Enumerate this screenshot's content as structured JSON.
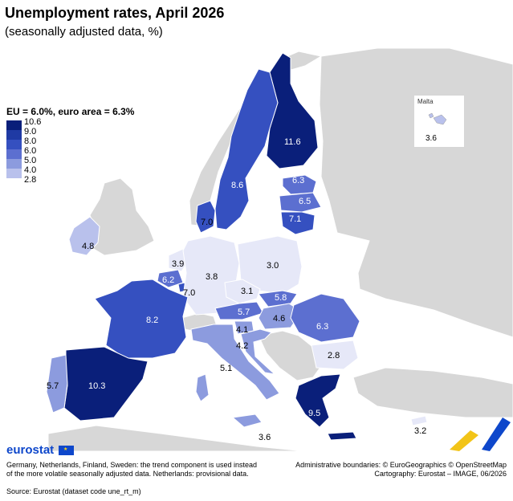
{
  "title": "Unemployment rates, April 2026",
  "subtitle": "(seasonally adjusted data, %)",
  "legend": {
    "summary": "EU = 6.0%, euro area = 6.3%",
    "breaks": [
      "10.6",
      "9.0",
      "8.0",
      "6.0",
      "5.0",
      "4.0",
      "2.8"
    ],
    "colors": [
      "#0a1f7a",
      "#1f3aa4",
      "#3550c0",
      "#5c6fd0",
      "#8c9bde",
      "#b9c1ec",
      "#e6e8f8"
    ]
  },
  "no_data_color": "#d7d7d7",
  "map_values": {
    "finland": "11.6",
    "sweden": "8.6",
    "estonia": "6.3",
    "latvia": "6.5",
    "lithuania": "7.1",
    "denmark": "7.0",
    "ireland": "4.8",
    "netherlands": "3.9",
    "belgium": "6.2",
    "luxembourg": "7.0",
    "germany": "3.8",
    "poland": "3.0",
    "czechia": "3.1",
    "slovakia": "5.8",
    "austria": "5.7",
    "hungary": "4.6",
    "slovenia": "4.1",
    "croatia": "4.2",
    "romania": "6.3",
    "bulgaria": "2.8",
    "france": "8.2",
    "italy": "5.1",
    "spain": "10.3",
    "portugal": "5.7",
    "greece": "9.5",
    "malta": "3.6",
    "cyprus": "3.2",
    "sicily": "3.6"
  },
  "inset": {
    "label": "Malta",
    "value": "3.6"
  },
  "footer": {
    "logo": "eurostat",
    "note": "Germany, Netherlands, Finland, Sweden: the trend component is used instead of the more volatile seasonally adjusted data. Netherlands: provisional data.",
    "source": "Source: Eurostat (dataset code une_rt_m)",
    "boundaries": "Administrative boundaries: © EuroGeographics © OpenStreetMap",
    "cartography": "Cartography: Eurostat – IMAGE, 06/2026"
  }
}
